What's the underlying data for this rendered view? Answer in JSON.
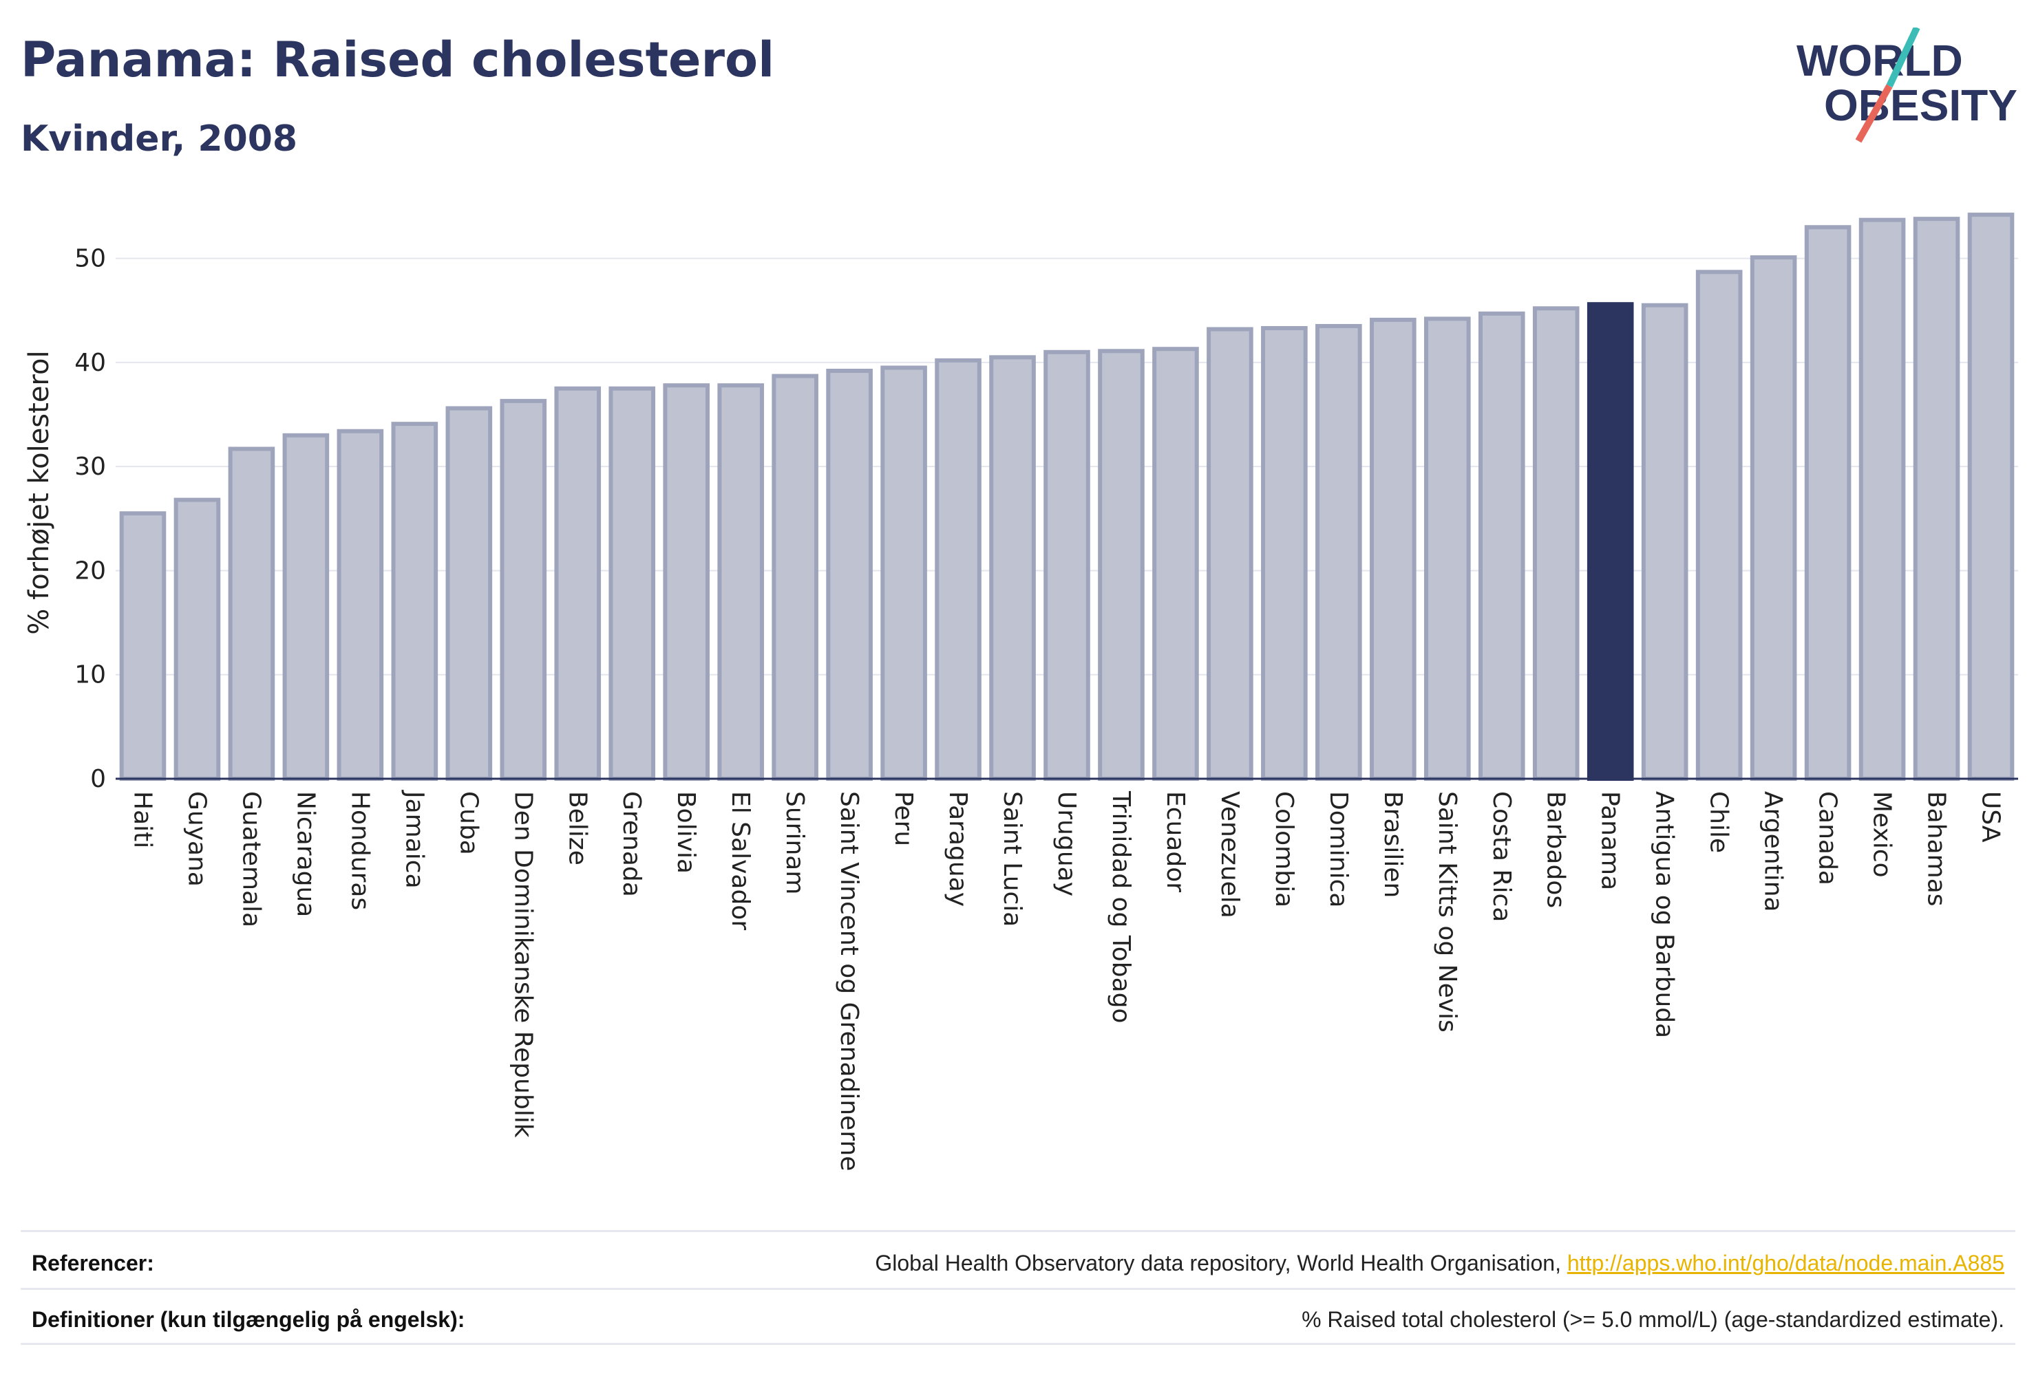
{
  "header": {
    "title": "Panama: Raised cholesterol",
    "subtitle": "Kvinder, 2008"
  },
  "logo": {
    "line1": "WORLD",
    "line2": "OBESITY",
    "colors": {
      "text": "#2b3560",
      "slash_teal": "#3bbcb6",
      "slash_red": "#e8655a"
    }
  },
  "colors": {
    "bar": "#bfc3d1",
    "bar_border": "#9ea4bb",
    "highlight": "#2b3560",
    "grid": "#e4e6ee",
    "axis": "#2b3560"
  },
  "chart_data": {
    "type": "bar",
    "title": "Panama: Raised cholesterol",
    "subtitle": "Kvinder, 2008",
    "ylabel": "% forhøjet kolesterol",
    "xlabel": "",
    "ylim": [
      0,
      55
    ],
    "yticks": [
      0,
      10,
      20,
      30,
      40,
      50
    ],
    "grid": true,
    "highlight": "Panama",
    "categories": [
      "Haiti",
      "Guyana",
      "Guatemala",
      "Nicaragua",
      "Honduras",
      "Jamaica",
      "Cuba",
      "Den Dominikanske Republik",
      "Belize",
      "Grenada",
      "Bolivia",
      "El Salvador",
      "Surinam",
      "Saint Vincent og Grenadinerne",
      "Peru",
      "Paraguay",
      "Saint Lucia",
      "Uruguay",
      "Trinidad og Tobago",
      "Ecuador",
      "Venezuela",
      "Colombia",
      "Dominica",
      "Brasilien",
      "Saint Kitts og Nevis",
      "Costa Rica",
      "Barbados",
      "Panama",
      "Antigua og Barbuda",
      "Chile",
      "Argentina",
      "Canada",
      "Mexico",
      "Bahamas",
      "USA"
    ],
    "values": [
      25.5,
      26.8,
      31.7,
      33.0,
      33.4,
      34.1,
      35.6,
      36.3,
      37.5,
      37.5,
      37.8,
      37.8,
      38.7,
      39.2,
      39.5,
      40.2,
      40.5,
      41.0,
      41.1,
      41.3,
      43.2,
      43.3,
      43.5,
      44.1,
      44.2,
      44.7,
      45.2,
      45.6,
      45.5,
      48.7,
      50.1,
      53.0,
      53.7,
      53.8,
      54.2
    ]
  },
  "footer": {
    "references_label": "Referencer:",
    "references_text": "Global Health Observatory data repository, World Health Organisation, ",
    "references_link": "http://apps.who.int/gho/data/node.main.A885",
    "definitions_label": "Definitioner (kun tilgængelig på engelsk):",
    "definitions_text": "% Raised total cholesterol (>= 5.0 mmol/L) (age-standardized estimate)."
  }
}
